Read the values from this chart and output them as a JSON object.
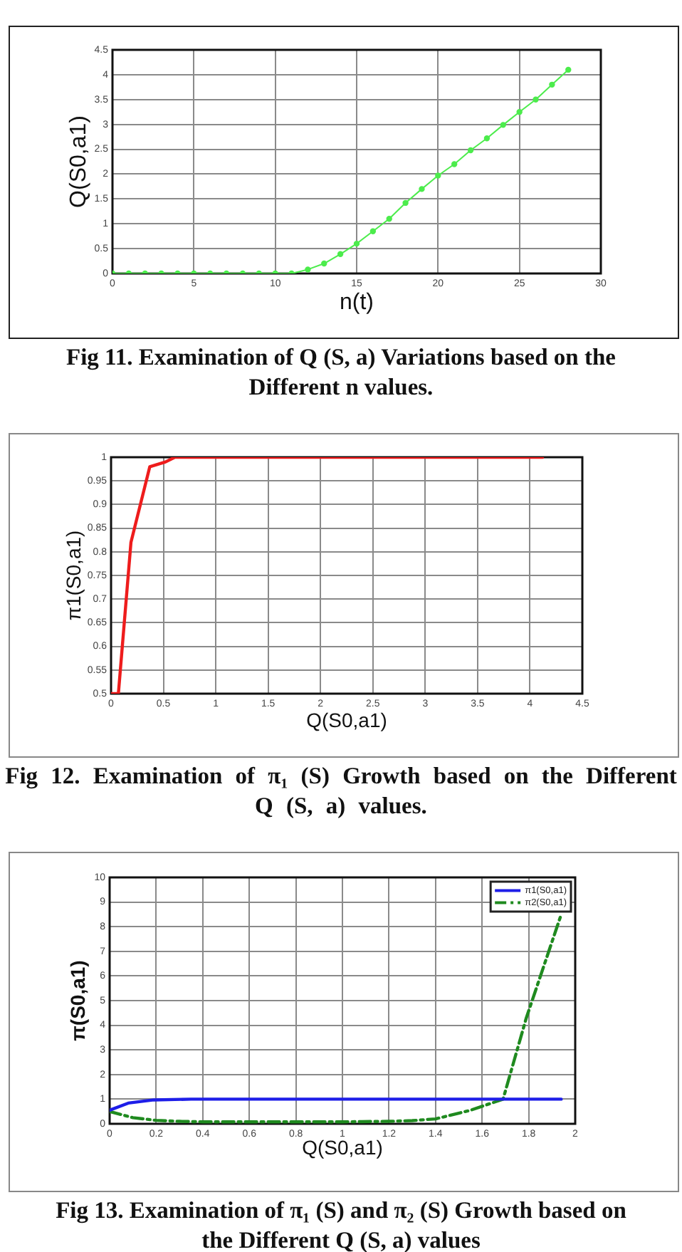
{
  "chart_data": [
    {
      "type": "line",
      "xlabel": "n(t)",
      "ylabel": "Q(S0,a1)",
      "x": [
        0,
        1,
        2,
        3,
        4,
        5,
        6,
        7,
        8,
        9,
        10,
        11,
        12,
        13,
        14,
        15,
        16,
        17,
        18,
        19,
        20,
        21,
        22,
        23,
        24,
        25,
        26,
        27,
        28
      ],
      "values": [
        0,
        0,
        0,
        0,
        0,
        0,
        0,
        0,
        0,
        0,
        0,
        0,
        0.08,
        0.2,
        0.39,
        0.6,
        0.85,
        1.1,
        1.42,
        1.7,
        1.97,
        2.2,
        2.48,
        2.72,
        2.99,
        3.25,
        3.5,
        3.8,
        4.1
      ],
      "color": "#4cec4c",
      "marker": "circle",
      "xlim": [
        0,
        30
      ],
      "xticks": [
        0,
        5,
        10,
        15,
        20,
        25,
        30
      ],
      "ylim": [
        0,
        4.5
      ],
      "yticks": [
        0,
        0.5,
        1,
        1.5,
        2,
        2.5,
        3,
        3.5,
        4,
        4.5
      ],
      "grid": true,
      "annotations": [
        "Fig 11. Examination of Q (S, a) Variations based on the Different n values."
      ]
    },
    {
      "type": "line",
      "xlabel": "Q(S0,a1)",
      "ylabel": "π1(S0,a1)",
      "x": [
        0,
        0.07,
        0.19,
        0.37,
        0.52,
        0.61,
        0.85,
        1.1,
        1.42,
        1.7,
        1.97,
        2.2,
        2.48,
        2.72,
        2.99,
        3.25,
        3.5,
        3.8,
        4.12
      ],
      "values": [
        0.5,
        0.5,
        0.82,
        0.98,
        0.99,
        1,
        1,
        1,
        1,
        1,
        1,
        1,
        1,
        1,
        1,
        1,
        1,
        1,
        1
      ],
      "color": "#ee1c1c",
      "xlim": [
        0,
        4.5
      ],
      "xticks": [
        0,
        0.5,
        1,
        1.5,
        2,
        2.5,
        3,
        3.5,
        4,
        4.5
      ],
      "ylim": [
        0.5,
        1
      ],
      "yticks": [
        0.5,
        0.55,
        0.6,
        0.65,
        0.7,
        0.75,
        0.8,
        0.85,
        0.9,
        0.95,
        1
      ],
      "grid": true,
      "annotations": [
        "Fig 12. Examination of π₁ (S) Growth based on the Different Q (S, a) values."
      ]
    },
    {
      "type": "line",
      "xlabel": "Q(S0,a1)",
      "ylabel": "π(S0,a1)",
      "series": [
        {
          "name": "π1(S0,a1)",
          "color": "#1e1ee8",
          "x": [
            0,
            0.08,
            0.19,
            0.35,
            1.94
          ],
          "values": [
            0.55,
            0.84,
            0.97,
            1,
            1
          ]
        },
        {
          "name": "π2(S0,a1)",
          "color": "#1f8a1f",
          "line_style": "dashdot",
          "x": [
            0,
            0.1,
            0.2,
            0.3,
            0.4,
            0.6,
            0.8,
            1,
            1.2,
            1.3,
            1.4,
            1.55,
            1.69,
            1.79,
            1.94
          ],
          "values": [
            0.5,
            0.25,
            0.14,
            0.1,
            0.08,
            0.08,
            0.08,
            0.08,
            0.1,
            0.13,
            0.2,
            0.55,
            1,
            4.3,
            8.5
          ]
        }
      ],
      "xlim": [
        0,
        2
      ],
      "xticks": [
        0,
        0.2,
        0.4,
        0.6,
        0.8,
        1,
        1.2,
        1.4,
        1.6,
        1.8,
        2
      ],
      "ylim": [
        0,
        10
      ],
      "yticks": [
        0,
        1,
        2,
        3,
        4,
        5,
        6,
        7,
        8,
        9,
        10
      ],
      "grid": true,
      "legend": "top right",
      "annotations": [
        "Fig 13. Examination of π₁ (S) and π₂ (S) Growth based on the Different Q (S, a) values"
      ]
    }
  ]
}
